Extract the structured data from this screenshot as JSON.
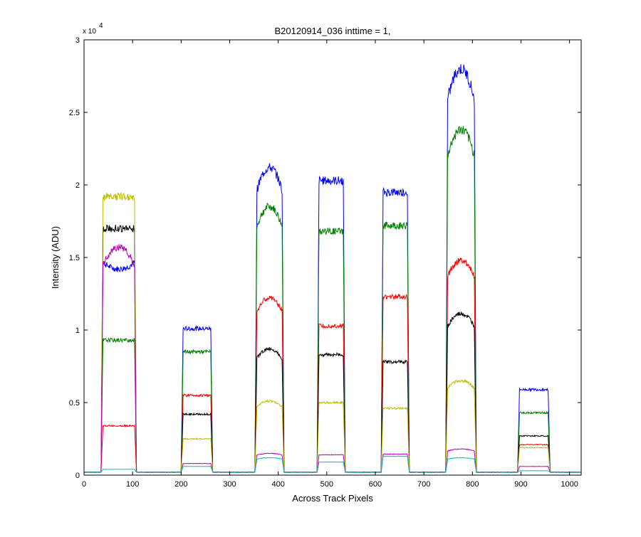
{
  "chart_data": {
    "type": "line",
    "title": "B20120914_036 inttime = 1,",
    "xlabel": "Across Track Pixels",
    "ylabel": "Intensity (ADU)",
    "exponent_label": "x 10",
    "exponent_power": "4",
    "xlim": [
      0,
      1024
    ],
    "ylim": [
      0,
      30000
    ],
    "xticks": [
      0,
      100,
      200,
      300,
      400,
      500,
      600,
      700,
      800,
      900,
      1000
    ],
    "yticks": [
      0,
      5000,
      10000,
      15000,
      20000,
      25000,
      30000
    ],
    "ytick_labels": [
      "0",
      "0.5",
      "1",
      "1.5",
      "2",
      "2.5",
      "3"
    ],
    "grid": false,
    "legend": "none",
    "baseline": 200,
    "segments": [
      {
        "start": 35,
        "end": 108
      },
      {
        "start": 200,
        "end": 265
      },
      {
        "start": 352,
        "end": 412
      },
      {
        "start": 480,
        "end": 538
      },
      {
        "start": 612,
        "end": 670
      },
      {
        "start": 745,
        "end": 808
      },
      {
        "start": 893,
        "end": 960
      }
    ],
    "series": [
      {
        "color": "#0000ff",
        "levels": [
          14500,
          10100,
          21200,
          20300,
          19500,
          28000,
          5900
        ],
        "shape": [
          -1,
          0,
          1,
          0,
          0,
          1,
          0
        ]
      },
      {
        "color": "#008000",
        "levels": [
          9300,
          8500,
          18500,
          16800,
          17200,
          23800,
          4300
        ],
        "shape": [
          0,
          0,
          1,
          0,
          0,
          1,
          0
        ]
      },
      {
        "color": "#ff0000",
        "levels": [
          3400,
          5500,
          12200,
          10300,
          12300,
          14800,
          2100
        ],
        "shape": [
          0,
          0,
          1,
          0,
          0,
          1,
          0
        ]
      },
      {
        "color": "#000000",
        "levels": [
          17000,
          4200,
          8700,
          8300,
          7800,
          11100,
          2700
        ],
        "shape": [
          0,
          0,
          1,
          0,
          0,
          1,
          0
        ]
      },
      {
        "color": "#bfbf00",
        "levels": [
          19200,
          2500,
          5100,
          5000,
          4600,
          6500,
          1900
        ],
        "shape": [
          0,
          0,
          1,
          0,
          0,
          1,
          0
        ]
      },
      {
        "color": "#bf00bf",
        "levels": [
          15700,
          800,
          1500,
          1400,
          1450,
          1800,
          600
        ],
        "shape": [
          1,
          0,
          1,
          0,
          0,
          1,
          0
        ]
      },
      {
        "color": "#00bfbf",
        "levels": [
          400,
          600,
          1200,
          900,
          1300,
          1200,
          300
        ],
        "shape": [
          0,
          0,
          1,
          0,
          0,
          1,
          0
        ]
      }
    ]
  }
}
